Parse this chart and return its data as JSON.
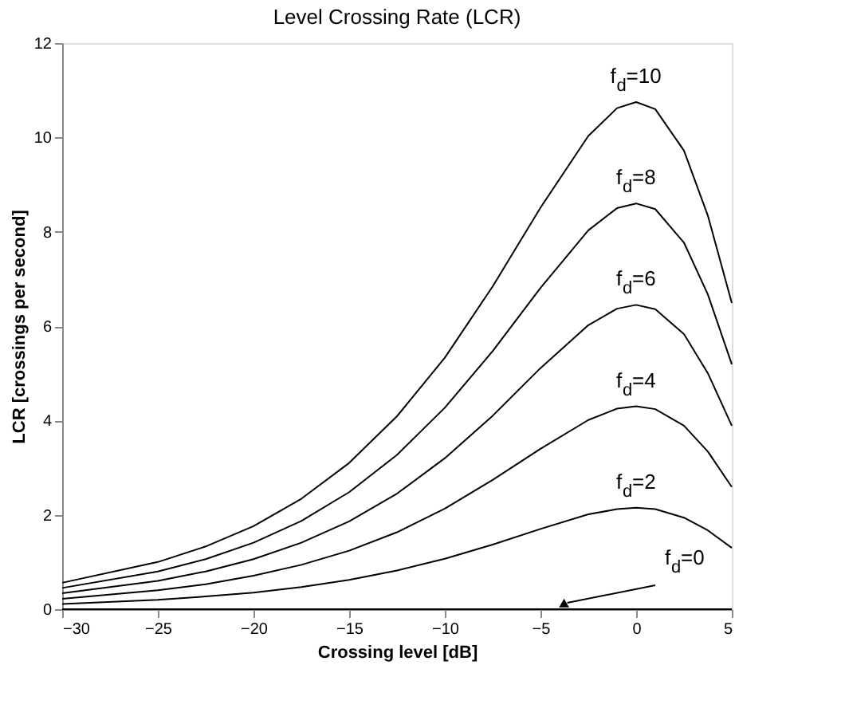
{
  "chart_data": {
    "type": "line",
    "title": "Level Crossing Rate (LCR)",
    "xlabel": "Crossing level [dB]",
    "ylabel": "LCR [crossings per second]",
    "x": [
      -30,
      -25,
      -22.5,
      -20,
      -17.5,
      -15,
      -12.5,
      -10,
      -7.5,
      -5,
      -2.5,
      -1,
      0,
      1,
      2.5,
      3.75,
      5
    ],
    "series": [
      {
        "name": "f$_{d}$=0",
        "color": "#000000",
        "values": [
          0,
          0,
          0,
          0,
          0,
          0,
          0,
          0,
          0,
          0,
          0,
          0,
          0,
          0,
          0,
          0,
          0
        ]
      },
      {
        "name": "f$_{d}$=2",
        "color": "#000000",
        "values": [
          0.11,
          0.2,
          0.27,
          0.35,
          0.47,
          0.62,
          0.82,
          1.07,
          1.37,
          1.7,
          2.01,
          2.12,
          2.15,
          2.12,
          1.94,
          1.67,
          1.3
        ]
      },
      {
        "name": "f$_{d}$=4",
        "color": "#000000",
        "values": [
          0.22,
          0.4,
          0.53,
          0.71,
          0.94,
          1.24,
          1.63,
          2.13,
          2.74,
          3.4,
          4.01,
          4.25,
          4.3,
          4.24,
          3.89,
          3.34,
          2.59
        ]
      },
      {
        "name": "f$_{d}$=6",
        "color": "#000000",
        "values": [
          0.34,
          0.6,
          0.8,
          1.06,
          1.41,
          1.86,
          2.45,
          3.2,
          4.1,
          5.11,
          6.02,
          6.37,
          6.45,
          6.36,
          5.83,
          5,
          3.89
        ]
      },
      {
        "name": "f$_{d}$=8",
        "color": "#000000",
        "values": [
          0.45,
          0.8,
          1.06,
          1.41,
          1.87,
          2.48,
          3.27,
          4.27,
          5.47,
          6.81,
          8.03,
          8.5,
          8.6,
          8.48,
          7.77,
          6.67,
          5.19
        ]
      },
      {
        "name": "f$_{d}$=10",
        "color": "#000000",
        "values": [
          0.56,
          1.0,
          1.33,
          1.76,
          2.34,
          3.1,
          4.09,
          5.33,
          6.84,
          8.51,
          10.03,
          10.62,
          10.75,
          10.6,
          9.72,
          8.34,
          6.49
        ]
      }
    ],
    "xlim": [
      -30,
      5
    ],
    "xticks": [
      -30,
      -25,
      -20,
      -15,
      -10,
      -5,
      0,
      5
    ],
    "ylim": [
      0,
      12
    ],
    "yticks": [
      0,
      2,
      4,
      6,
      8,
      10,
      12
    ],
    "grid": false,
    "legend": false,
    "marker": "none",
    "line_style": "solid"
  }
}
